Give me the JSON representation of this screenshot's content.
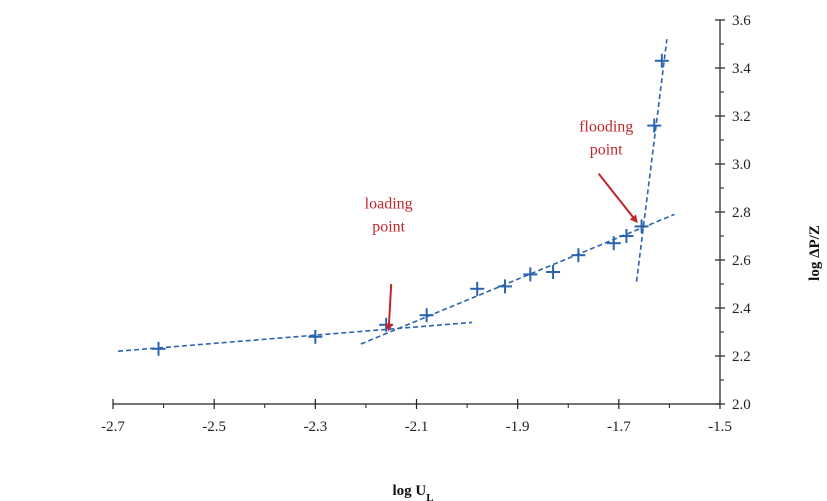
{
  "chart_data": {
    "type": "scatter",
    "xlabel": "log U",
    "xlabel_sub": "L",
    "ylabel": "log ΔP/Z",
    "xlim": [
      -2.7,
      -1.5
    ],
    "ylim": [
      2.0,
      3.6
    ],
    "x_ticks": [
      -2.7,
      -2.5,
      -2.3,
      -2.1,
      -1.9,
      -1.7,
      -1.5
    ],
    "x_tick_labels": [
      "-2.7",
      "-2.5",
      "-2.3",
      "-2.1",
      "-1.9",
      "-1.7",
      "-1.5"
    ],
    "y_ticks": [
      2.0,
      2.2,
      2.4,
      2.6,
      2.8,
      3.0,
      3.2,
      3.4,
      3.6
    ],
    "y_tick_labels": [
      "2.0",
      "2.2",
      "2.4",
      "2.6",
      "2.8",
      "3.0",
      "3.2",
      "3.4",
      "3.6"
    ],
    "grid": false,
    "marker": "plus",
    "marker_color": "#2a63b0",
    "line_color": "#2a63b0",
    "annotation_color": "#c0262c",
    "points": [
      {
        "x": -2.61,
        "y": 2.23
      },
      {
        "x": -2.3,
        "y": 2.28
      },
      {
        "x": -2.16,
        "y": 2.33
      },
      {
        "x": -2.08,
        "y": 2.37
      },
      {
        "x": -1.98,
        "y": 2.48
      },
      {
        "x": -1.925,
        "y": 2.49
      },
      {
        "x": -1.875,
        "y": 2.54
      },
      {
        "x": -1.83,
        "y": 2.55
      },
      {
        "x": -1.78,
        "y": 2.62
      },
      {
        "x": -1.71,
        "y": 2.67
      },
      {
        "x": -1.685,
        "y": 2.7
      },
      {
        "x": -1.655,
        "y": 2.74
      },
      {
        "x": -1.63,
        "y": 3.16
      },
      {
        "x": -1.615,
        "y": 3.43
      }
    ],
    "trend_lines": [
      {
        "x1": -2.69,
        "y1": 2.22,
        "x2": -1.99,
        "y2": 2.34
      },
      {
        "x1": -2.21,
        "y1": 2.25,
        "x2": -1.59,
        "y2": 2.79
      },
      {
        "x1": -1.665,
        "y1": 2.51,
        "x2": -1.605,
        "y2": 3.52
      }
    ],
    "annotations": [
      {
        "lines": [
          "loading",
          "point"
        ],
        "x": -2.155,
        "y": 2.815,
        "arrow_from": [
          -2.15,
          2.5
        ],
        "arrow_to": [
          -2.155,
          2.31
        ]
      },
      {
        "lines": [
          "flooding",
          "point"
        ],
        "x": -1.725,
        "y": 3.135,
        "arrow_from": [
          -1.74,
          2.96
        ],
        "arrow_to": [
          -1.665,
          2.76
        ]
      }
    ]
  }
}
